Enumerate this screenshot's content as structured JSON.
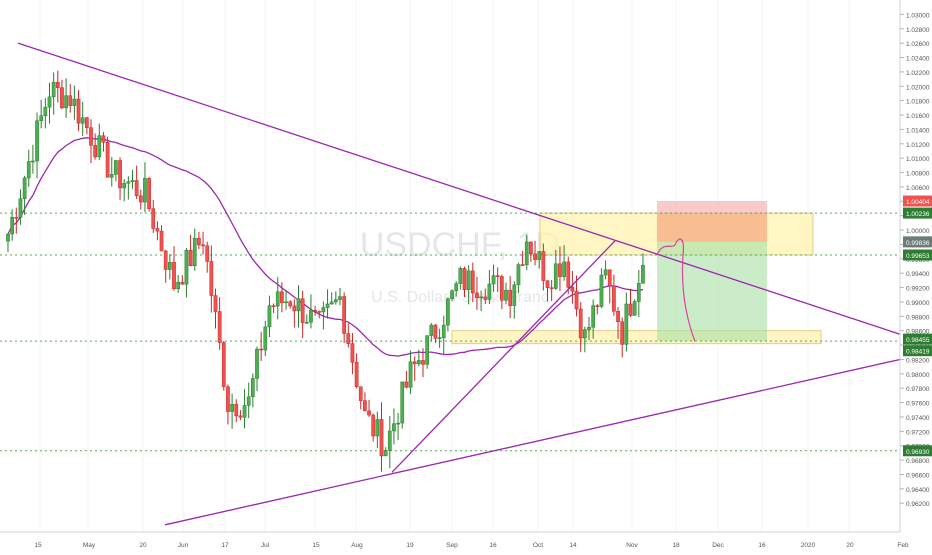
{
  "chart_data": {
    "type": "candlestick",
    "symbol": "USDCHF",
    "watermark_title": "USDCHF, 1D",
    "watermark_subtitle": "U.S. Dollar / Swiss Franc",
    "price_axis": {
      "min": 0.958,
      "max": 1.032,
      "ticks": [
        "1.03000",
        "1.02800",
        "1.02600",
        "1.02400",
        "1.02200",
        "1.02000",
        "1.01800",
        "1.01600",
        "1.01400",
        "1.01200",
        "1.01000",
        "1.00800",
        "1.00600",
        "1.00400",
        "1.00200",
        "1.00000",
        "0.99800",
        "0.99600",
        "0.99400",
        "0.99200",
        "0.99000",
        "0.98800",
        "0.98600",
        "0.98400",
        "0.98200",
        "0.98000",
        "0.97800",
        "0.97600",
        "0.97400",
        "0.97200",
        "0.97000",
        "0.96800",
        "0.96600",
        "0.96400",
        "0.96200"
      ]
    },
    "time_axis": {
      "ticks": [
        "15",
        "May",
        "20",
        "Jun",
        "17",
        "Jul",
        "15",
        "Aug",
        "19",
        "Sep",
        "16",
        "Oct",
        "14",
        "Nov",
        "18",
        "Dec",
        "16",
        "2020",
        "20",
        "Feb"
      ]
    },
    "price_labels": [
      {
        "value": 1.00404,
        "text": "1.00404",
        "color": "#ef5350"
      },
      {
        "value": 1.00236,
        "text": "1.00236",
        "color": "#2e7d32"
      },
      {
        "value": 0.99836,
        "text": "0.99836",
        "color": "#6d7a76"
      },
      {
        "value": 0.99653,
        "text": "0.99653",
        "color": "#2e7d32"
      },
      {
        "value": 0.98455,
        "text": "0.98455",
        "color": "#2e7d32"
      },
      {
        "value": 0.98419,
        "text": "0.98419",
        "color": "#2e7d32"
      },
      {
        "value": 0.9693,
        "text": "0.96930",
        "color": "#2e7d32"
      }
    ],
    "horizontal_levels": [
      1.00236,
      0.99653,
      0.98455,
      0.9693
    ],
    "zones": [
      {
        "name": "resistance-zone",
        "from": 0.99653,
        "to": 1.00236,
        "color": "#fff3b0"
      },
      {
        "name": "support-zone",
        "from": 0.98419,
        "to": 0.986,
        "color": "#fff3b0"
      },
      {
        "name": "stop-loss-zone",
        "from": 0.99836,
        "to": 1.00404,
        "color": "#f7a7a7"
      },
      {
        "name": "take-profit-zone",
        "from": 0.98455,
        "to": 0.99836,
        "color": "#a8dfa3"
      }
    ],
    "series_style": {
      "up_color": "#26a69a",
      "up_fill": "#4caf50",
      "down_color": "#ef5350",
      "ma_color": "#9c27b0",
      "trendline_color": "#9c27b0"
    },
    "anchors": [
      {
        "date_index": 0,
        "close": 0.9995
      },
      {
        "date_index": 10,
        "close": 1.0195
      },
      {
        "date_index": 15,
        "close": 1.0185
      },
      {
        "date_index": 25,
        "close": 1.008
      },
      {
        "date_index": 33,
        "close": 1.005
      },
      {
        "date_index": 40,
        "close": 0.9925
      },
      {
        "date_index": 47,
        "close": 0.999
      },
      {
        "date_index": 53,
        "close": 0.976
      },
      {
        "date_index": 58,
        "close": 0.976
      },
      {
        "date_index": 63,
        "close": 0.9895
      },
      {
        "date_index": 68,
        "close": 0.9905
      },
      {
        "date_index": 75,
        "close": 0.9865
      },
      {
        "date_index": 80,
        "close": 0.9905
      },
      {
        "date_index": 86,
        "close": 0.974
      },
      {
        "date_index": 91,
        "close": 0.97
      },
      {
        "date_index": 97,
        "close": 0.98
      },
      {
        "date_index": 103,
        "close": 0.986
      },
      {
        "date_index": 109,
        "close": 0.993
      },
      {
        "date_index": 115,
        "close": 0.9925
      },
      {
        "date_index": 121,
        "close": 0.9915
      },
      {
        "date_index": 125,
        "close": 0.999
      },
      {
        "date_index": 130,
        "close": 0.9935
      },
      {
        "date_index": 134,
        "close": 0.996
      },
      {
        "date_index": 139,
        "close": 0.985
      },
      {
        "date_index": 144,
        "close": 0.9935
      },
      {
        "date_index": 148,
        "close": 0.986
      },
      {
        "date_index": 153,
        "close": 0.996
      }
    ]
  }
}
